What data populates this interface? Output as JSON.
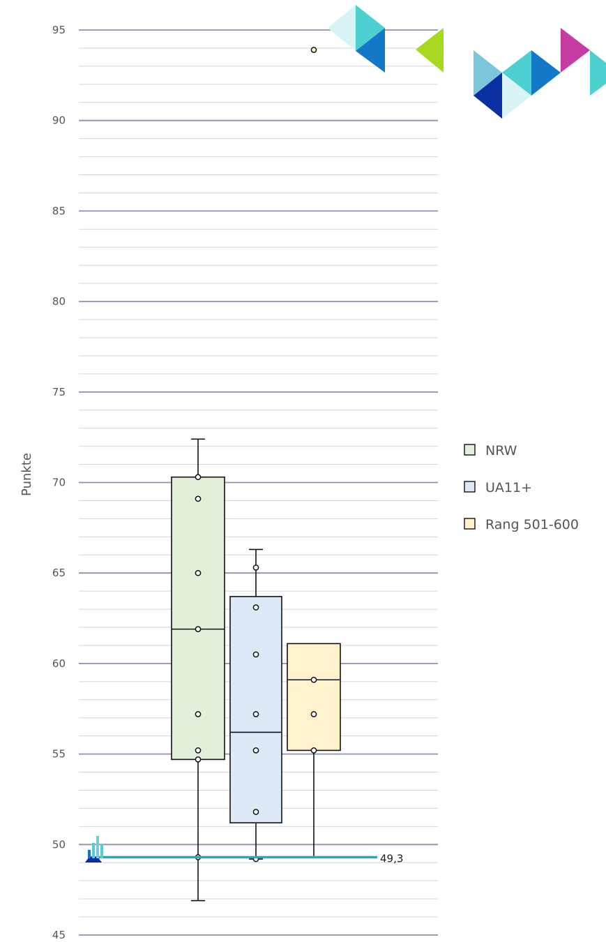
{
  "chart_data": {
    "type": "box",
    "ylabel": "Punkte",
    "ylim": [
      45,
      95
    ],
    "y_ticks": [
      45,
      50,
      55,
      60,
      65,
      70,
      75,
      80,
      85,
      90,
      95
    ],
    "y_tick_labels": [
      "45",
      "50",
      "55",
      "60",
      "65",
      "70",
      "75",
      "80",
      "85",
      "90",
      "95"
    ],
    "major_grid_step": 5,
    "minor_grid_step": 1,
    "grid": true,
    "legend_position": "right",
    "reference_line": {
      "value": 49.3,
      "label": "49,3",
      "color": "#2aa6c4"
    },
    "series": [
      {
        "name": "NRW",
        "fill": "#e2efda",
        "min": 46.9,
        "q1": 54.7,
        "median": 61.9,
        "q3": 70.3,
        "max": 72.4,
        "points": [
          49.3,
          54.7,
          55.2,
          57.2,
          61.9,
          65.0,
          69.1,
          70.3
        ]
      },
      {
        "name": "UA11+",
        "fill": "#dde9f6",
        "min": 49.2,
        "q1": 51.2,
        "median": 56.2,
        "q3": 63.7,
        "max": 66.3,
        "points": [
          49.2,
          51.8,
          55.2,
          57.2,
          60.5,
          63.1,
          65.3
        ]
      },
      {
        "name": "Rang 501-600",
        "fill": "#fff2cc",
        "min": 49.3,
        "q1": 55.2,
        "median": 59.1,
        "q3": 61.1,
        "max": 61.1,
        "points": [
          55.2,
          57.2,
          59.1
        ],
        "outliers": [
          93.9
        ]
      }
    ]
  },
  "decoration": {
    "colors": {
      "cyan": "#4ecfd0",
      "light_cyan": "#d8f4f5",
      "blue": "#1478c8",
      "dark_blue": "#0a2fa0",
      "sky": "#7cc6dc",
      "magenta": "#c63ca3",
      "lime": "#a8d820"
    },
    "logo_icon": "university-logo-icon"
  }
}
